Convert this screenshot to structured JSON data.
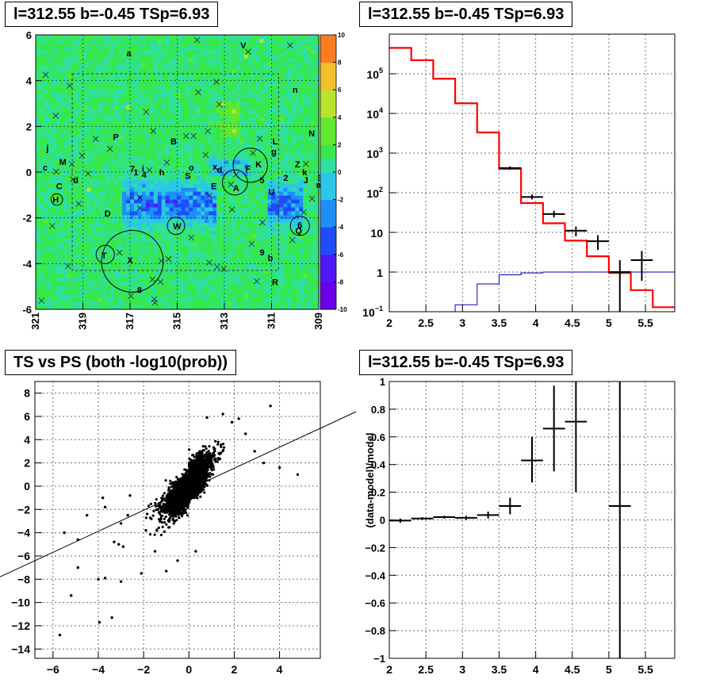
{
  "chart_data": [
    {
      "id": "skymap",
      "type": "heatmap",
      "title": "l=312.55 b=-0.45 TSp=6.93",
      "xlim": [
        321,
        309
      ],
      "ylim": [
        -6,
        6
      ],
      "x_ticks": [
        "321",
        "319",
        "317",
        "315",
        "313",
        "311",
        "309"
      ],
      "y_ticks": [
        "-6",
        "-4",
        "-2",
        "0",
        "2",
        "4",
        "6"
      ],
      "colorbar": {
        "min": -10,
        "max": 10,
        "ticks": [
          "-10",
          "-8",
          "-6",
          "-4",
          "-2",
          "0",
          "2",
          "4",
          "6",
          "8",
          "10"
        ]
      },
      "labels": [
        {
          "t": "a",
          "l": 317.05,
          "b": 5.2
        },
        {
          "t": "V",
          "l": 312.2,
          "b": 5.55
        },
        {
          "t": "n",
          "l": 310.0,
          "b": 3.6
        },
        {
          "t": "N",
          "l": 309.3,
          "b": 1.7
        },
        {
          "t": "P",
          "l": 317.6,
          "b": 1.55
        },
        {
          "t": "B",
          "l": 315.15,
          "b": 1.35
        },
        {
          "t": "L",
          "l": 310.85,
          "b": 1.35
        },
        {
          "t": "g",
          "l": 310.9,
          "b": 0.9
        },
        {
          "t": "j",
          "l": 320.5,
          "b": 1.05
        },
        {
          "t": "M",
          "l": 319.85,
          "b": 0.45
        },
        {
          "t": "K",
          "l": 311.55,
          "b": 0.35
        },
        {
          "t": "Z",
          "l": 309.9,
          "b": 0.35
        },
        {
          "t": "c",
          "l": 320.6,
          "b": 0.2
        },
        {
          "t": "7",
          "l": 316.9,
          "b": 0.15
        },
        {
          "t": "i",
          "l": 316.45,
          "b": 0.15
        },
        {
          "t": "o",
          "l": 314.4,
          "b": 0.2
        },
        {
          "t": "x",
          "l": 313.4,
          "b": 0.25
        },
        {
          "t": "d",
          "l": 313.2,
          "b": 0.1
        },
        {
          "t": "F",
          "l": 312.0,
          "b": 0.15
        },
        {
          "t": "k",
          "l": 309.6,
          "b": 0.0
        },
        {
          "t": "1",
          "l": 316.75,
          "b": 0.0
        },
        {
          "t": "4",
          "l": 316.4,
          "b": -0.1
        },
        {
          "t": "h",
          "l": 315.65,
          "b": 0.0
        },
        {
          "t": "S",
          "l": 314.55,
          "b": -0.15
        },
        {
          "t": "5",
          "l": 311.4,
          "b": -0.35
        },
        {
          "t": "2",
          "l": 310.4,
          "b": -0.25
        },
        {
          "t": "J",
          "l": 309.55,
          "b": -0.35
        },
        {
          "t": "3",
          "l": 308.95,
          "b": -0.25
        },
        {
          "t": "d",
          "l": 319.3,
          "b": -0.35
        },
        {
          "t": "m",
          "l": 308.95,
          "b": -0.55
        },
        {
          "t": "C",
          "l": 320.0,
          "b": -0.6
        },
        {
          "t": "E",
          "l": 313.45,
          "b": -0.6
        },
        {
          "t": "A",
          "l": 312.5,
          "b": -0.7
        },
        {
          "t": "U",
          "l": 311.0,
          "b": -0.85
        },
        {
          "t": "H",
          "l": 320.15,
          "b": -1.2
        },
        {
          "t": "D",
          "l": 317.95,
          "b": -1.8
        },
        {
          "t": "W",
          "l": 315.0,
          "b": -2.35
        },
        {
          "t": "6",
          "l": 309.8,
          "b": -2.3
        },
        {
          "t": "Q",
          "l": 309.85,
          "b": -2.55
        },
        {
          "t": "9",
          "l": 311.4,
          "b": -3.5
        },
        {
          "t": "T",
          "l": 318.1,
          "b": -3.65
        },
        {
          "t": "b",
          "l": 311.05,
          "b": -3.75
        },
        {
          "t": "X",
          "l": 317.0,
          "b": -3.85
        },
        {
          "t": "R",
          "l": 310.85,
          "b": -4.8
        },
        {
          "t": "8",
          "l": 316.6,
          "b": -5.15
        }
      ],
      "circles": [
        {
          "l": 316.9,
          "b": -3.9,
          "r": 1.35
        },
        {
          "l": 312.55,
          "b": -0.45,
          "r": 0.55
        },
        {
          "l": 311.9,
          "b": 0.3,
          "r": 0.75
        },
        {
          "l": 318.05,
          "b": -3.6,
          "r": 0.4
        },
        {
          "l": 309.8,
          "b": -2.35,
          "r": 0.42
        },
        {
          "l": 315.05,
          "b": -2.35,
          "r": 0.38
        },
        {
          "l": 320.1,
          "b": -1.2,
          "r": 0.25
        }
      ]
    },
    {
      "id": "spectrum",
      "type": "line",
      "title": "l=312.55 b=-0.45 TSp=6.93",
      "xlim": [
        2,
        5.9
      ],
      "ylim": [
        0.1,
        1000000
      ],
      "yscale": "log",
      "x_ticks": [
        "2",
        "2.5",
        "3",
        "3.5",
        "4",
        "4.5",
        "5",
        "5.5"
      ],
      "y_ticks": [
        {
          "base": "10",
          "exp": "5",
          "v": 100000
        },
        {
          "base": "10",
          "exp": "4",
          "v": 10000
        },
        {
          "base": "10",
          "exp": "3",
          "v": 1000
        },
        {
          "base": "10",
          "exp": "2",
          "v": 100
        },
        {
          "base": "10",
          "exp": "",
          "v": 10
        },
        {
          "base": "1",
          "exp": "",
          "v": 1
        },
        {
          "base": "10",
          "exp": "−1",
          "v": 0.1
        }
      ],
      "bin_edges": [
        2.0,
        2.3,
        2.6,
        2.9,
        3.2,
        3.5,
        3.8,
        4.1,
        4.4,
        4.7,
        5.0,
        5.3,
        5.6,
        5.9
      ],
      "model_red": [
        450000,
        220000,
        75000,
        18000,
        3300,
        400,
        55,
        17,
        6.2,
        2.5,
        0.95,
        0.35,
        0.13
      ],
      "model_black": [
        450000,
        220000,
        75000,
        18000,
        3400,
        420,
        55,
        17,
        6.2,
        2.5,
        0.95,
        0.35,
        0.13
      ],
      "background_blue": [
        0,
        0,
        0.1,
        0.15,
        0.5,
        0.85,
        0.95,
        1.0,
        1.0,
        1.0,
        1.0,
        1.0,
        1.0
      ],
      "data_points": [
        {
          "x": 3.65,
          "xerr": 0.15,
          "y": 420,
          "ylo": 380,
          "yhi": 460
        },
        {
          "x": 3.95,
          "xerr": 0.15,
          "y": 78,
          "ylo": 68,
          "yhi": 90
        },
        {
          "x": 4.25,
          "xerr": 0.15,
          "y": 29,
          "ylo": 24,
          "yhi": 35
        },
        {
          "x": 4.55,
          "xerr": 0.15,
          "y": 11,
          "ylo": 8,
          "yhi": 14
        },
        {
          "x": 4.85,
          "xerr": 0.15,
          "y": 6,
          "ylo": 3.6,
          "yhi": 8.5
        },
        {
          "x": 5.15,
          "xerr": 0.15,
          "y": 1,
          "ylo": 0.1,
          "yhi": 2
        },
        {
          "x": 5.45,
          "xerr": 0.15,
          "y": 2,
          "ylo": 0.6,
          "yhi": 3.4
        }
      ]
    },
    {
      "id": "ts-vs-ps",
      "type": "scatter",
      "title": "TS vs PS (both -log10(prob))",
      "xlim": [
        -6.8,
        5.8
      ],
      "ylim": [
        -14.8,
        9
      ],
      "x_ticks": [
        "-6",
        "-4",
        "-2",
        "0",
        "2",
        "4"
      ],
      "y_ticks": [
        "8",
        "6",
        "4",
        "2",
        "0",
        "-2",
        "-4",
        "-6",
        "-8",
        "-10",
        "-12",
        "-14"
      ],
      "fit_line": {
        "x0": -6.8,
        "y0": -7.3,
        "x1": 5.8,
        "y1": 5.3
      },
      "outliers": [
        [
          -5.7,
          -12.8
        ],
        [
          -5.2,
          -9.4
        ],
        [
          -4.9,
          -7.0
        ],
        [
          -3.95,
          -11.7
        ],
        [
          -3.4,
          -11.3
        ],
        [
          -5.5,
          -4.0
        ],
        [
          -4.9,
          -4.6
        ],
        [
          -4.0,
          -8.0
        ],
        [
          -3.7,
          -7.9
        ],
        [
          -3.0,
          -8.2
        ],
        [
          -2.1,
          -7.5
        ],
        [
          -1.0,
          -7.3
        ],
        [
          -3.8,
          -1.0
        ],
        [
          -3.7,
          -1.8
        ],
        [
          -3.0,
          -3.2
        ],
        [
          -3.3,
          -4.8
        ],
        [
          -3.1,
          -5.0
        ],
        [
          -2.9,
          -5.2
        ],
        [
          -4.5,
          -2.5
        ],
        [
          -2.6,
          -0.8
        ],
        [
          3.6,
          6.9
        ],
        [
          4.8,
          1.0
        ],
        [
          4.0,
          1.6
        ],
        [
          0.8,
          5.9
        ],
        [
          1.9,
          5.5
        ],
        [
          2.5,
          4.5
        ],
        [
          2.9,
          3.0
        ],
        [
          3.3,
          2.0
        ],
        [
          -1.5,
          -5.6
        ],
        [
          -0.5,
          -6.4
        ],
        [
          -2.7,
          -2.5
        ],
        [
          -1.9,
          -3.8
        ],
        [
          0.3,
          -5.6
        ],
        [
          1.5,
          6.2
        ],
        [
          2.2,
          5.8
        ]
      ]
    },
    {
      "id": "residuals",
      "type": "line",
      "title": "l=312.55 b=-0.45 TSp=6.93",
      "xlim": [
        2,
        5.9
      ],
      "ylim": [
        -1,
        1
      ],
      "x_ticks": [
        "2",
        "2.5",
        "3",
        "3.5",
        "4",
        "4.5",
        "5",
        "5.5"
      ],
      "y_ticks": [
        "1",
        "0.8",
        "0.6",
        "0.4",
        "0.2",
        "0",
        "−0.2",
        "−0.4",
        "−0.6",
        "−0.8",
        "−1"
      ],
      "ylabel": "(data-model)/model",
      "points": [
        {
          "x": 2.15,
          "xerr": 0.15,
          "y": -0.005,
          "ylo": -0.02,
          "yhi": 0.01
        },
        {
          "x": 2.45,
          "xerr": 0.15,
          "y": 0.01,
          "ylo": 0.0,
          "yhi": 0.02
        },
        {
          "x": 2.75,
          "xerr": 0.15,
          "y": 0.02,
          "ylo": 0.01,
          "yhi": 0.03
        },
        {
          "x": 3.05,
          "xerr": 0.15,
          "y": 0.015,
          "ylo": 0.0,
          "yhi": 0.03
        },
        {
          "x": 3.35,
          "xerr": 0.15,
          "y": 0.035,
          "ylo": 0.01,
          "yhi": 0.06
        },
        {
          "x": 3.65,
          "xerr": 0.15,
          "y": 0.1,
          "ylo": 0.04,
          "yhi": 0.16
        },
        {
          "x": 3.95,
          "xerr": 0.15,
          "y": 0.43,
          "ylo": 0.27,
          "yhi": 0.6
        },
        {
          "x": 4.25,
          "xerr": 0.15,
          "y": 0.66,
          "ylo": 0.35,
          "yhi": 0.97
        },
        {
          "x": 4.55,
          "xerr": 0.15,
          "y": 0.71,
          "ylo": 0.2,
          "yhi": 1.0
        },
        {
          "x": 5.15,
          "xerr": 0.15,
          "y": 0.1,
          "ylo": -1.0,
          "yhi": 1.0
        }
      ]
    }
  ]
}
